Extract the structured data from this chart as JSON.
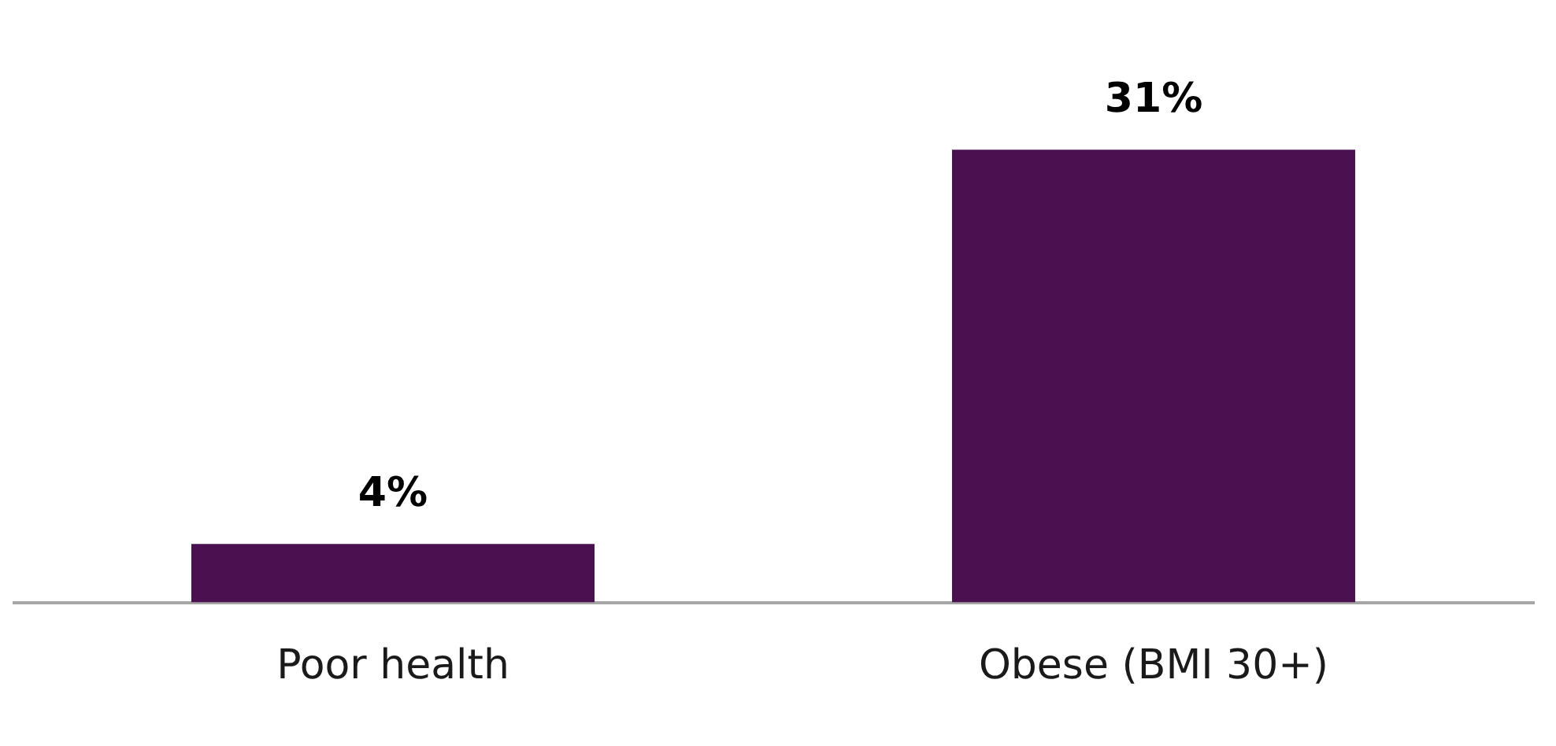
{
  "chart_data": {
    "type": "bar",
    "categories": [
      "Poor health",
      "Obese (BMI 30+)"
    ],
    "values": [
      4,
      31
    ],
    "color": "#4b1050",
    "value_labels": [
      "4%",
      "31%"
    ],
    "grid": false,
    "legend": false
  }
}
